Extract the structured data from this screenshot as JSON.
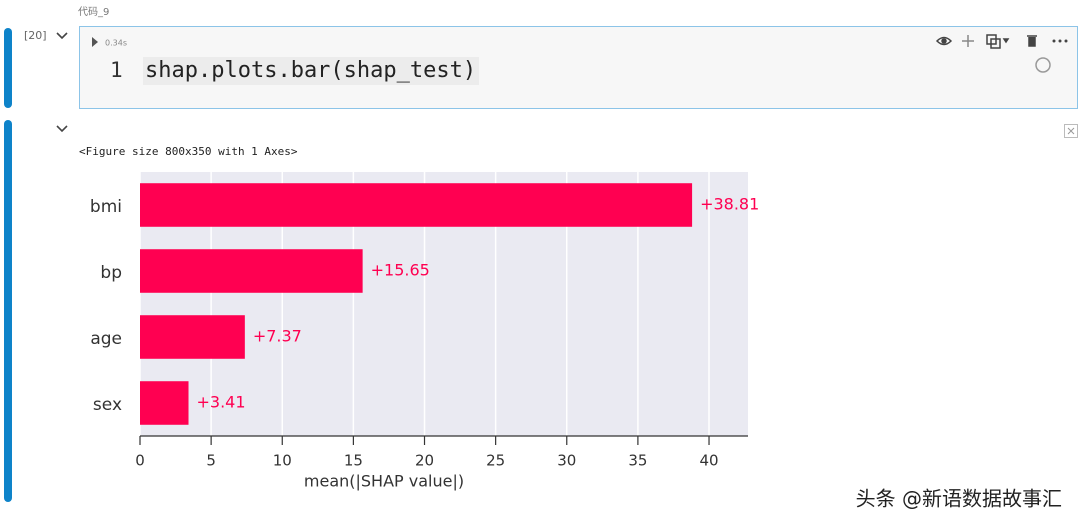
{
  "cell_label": "代码_9",
  "execution_count": "[20]",
  "run_time": "0.34s",
  "code": {
    "line_number": "1",
    "text": "shap.plots.bar(shap_test)"
  },
  "output_text": "<Figure size 800x350 with 1 Axes>",
  "chart_data": {
    "type": "bar",
    "orientation": "horizontal",
    "categories": [
      "bmi",
      "bp",
      "age",
      "sex"
    ],
    "values": [
      38.81,
      15.65,
      7.37,
      3.41
    ],
    "value_labels": [
      "+38.81",
      "+15.65",
      "+7.37",
      "+3.41"
    ],
    "color": "#ff0051",
    "xlabel": "mean(|SHAP value|)",
    "xlim": [
      0,
      42.74
    ],
    "xticks": [
      0,
      5,
      10,
      15,
      20,
      25,
      30,
      35,
      40
    ],
    "grid": true
  },
  "watermark": "头条 @新语数据故事汇"
}
